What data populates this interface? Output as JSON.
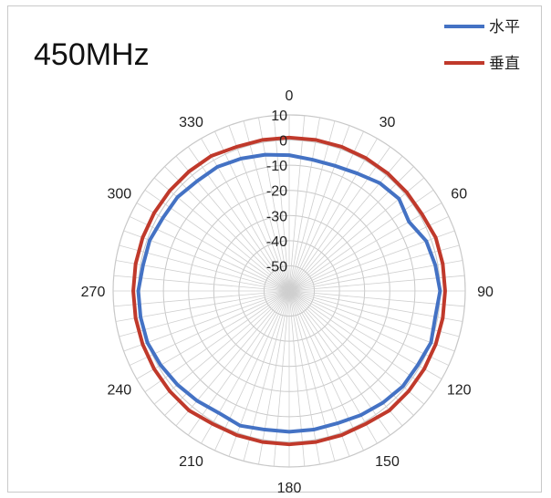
{
  "chart_data": {
    "type": "radar",
    "title": "450MHz",
    "theta_unit": "degrees",
    "theta_ticks": [
      "0",
      "30",
      "60",
      "90",
      "120",
      "150",
      "180",
      "210",
      "240",
      "270",
      "300",
      "330"
    ],
    "r_ticks": [
      "10",
      "0",
      "-10",
      "-20",
      "-30",
      "-40",
      "-50"
    ],
    "rlim": [
      -60,
      10
    ],
    "grid": true,
    "legend_position": "top-right",
    "series": [
      {
        "name": "水平",
        "color": "#4472C4",
        "theta": [
          0,
          10,
          20,
          30,
          40,
          50,
          60,
          70,
          80,
          90,
          100,
          110,
          120,
          130,
          140,
          150,
          160,
          170,
          180,
          190,
          200,
          210,
          220,
          230,
          240,
          250,
          260,
          270,
          280,
          290,
          300,
          310,
          320,
          330,
          340,
          350
        ],
        "values": [
          -6,
          -7,
          -7,
          -6,
          -4,
          -3,
          -5,
          -2,
          -1,
          0,
          -1,
          0,
          -1,
          -1,
          -2,
          -3,
          -4,
          -4,
          -4,
          -4,
          -3,
          -4,
          -3,
          -2,
          -1,
          0,
          0,
          0,
          -1,
          -1,
          -2,
          -2,
          -3,
          -3,
          -4,
          -5
        ]
      },
      {
        "name": "垂直",
        "color": "#C0392B",
        "theta": [
          0,
          10,
          20,
          30,
          40,
          50,
          60,
          70,
          80,
          90,
          100,
          110,
          120,
          130,
          140,
          150,
          160,
          170,
          180,
          190,
          200,
          210,
          220,
          230,
          240,
          250,
          260,
          270,
          280,
          290,
          300,
          310,
          320,
          330,
          340,
          350
        ],
        "values": [
          1,
          1,
          1,
          1,
          1,
          1,
          1,
          2,
          2,
          2,
          2,
          2,
          2,
          2,
          2,
          1,
          1,
          1,
          1,
          1,
          1,
          1,
          2,
          2,
          2,
          2,
          2,
          2,
          2,
          2,
          2,
          2,
          2,
          2,
          1,
          1
        ]
      }
    ]
  }
}
